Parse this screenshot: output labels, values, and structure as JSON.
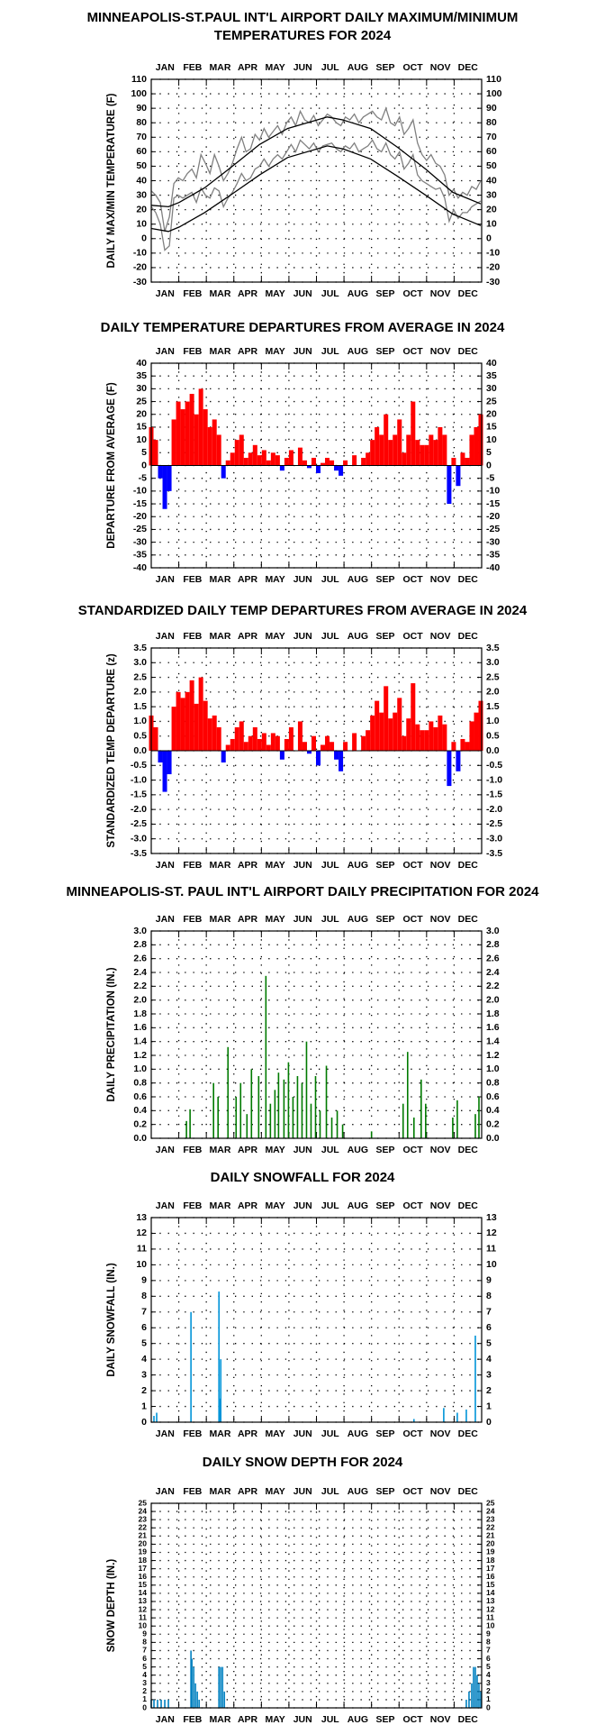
{
  "chart_data": [
    {
      "type": "line",
      "title": [
        "MINNEAPOLIS-ST.PAUL INT'L AIRPORT DAILY MAXIMUM/MINIMUM",
        "TEMPERATURES FOR 2024"
      ],
      "y_label": "DAILY MAX/MIN TEMPERATURE (F)",
      "categories": [
        "JAN",
        "FEB",
        "MAR",
        "APR",
        "MAY",
        "JUN",
        "JUL",
        "AUG",
        "SEP",
        "OCT",
        "NOV",
        "DEC"
      ],
      "xlim": [
        1,
        367
      ],
      "ylim": [
        -30,
        110
      ],
      "yticks": [
        -30,
        -20,
        -10,
        0,
        10,
        20,
        30,
        40,
        50,
        60,
        70,
        80,
        90,
        100,
        110
      ],
      "grid": true,
      "series": [
        {
          "color": "#808080",
          "x": [
            1,
            6,
            11,
            16,
            21,
            26,
            31,
            36,
            41,
            46,
            51,
            56,
            61,
            66,
            71,
            76,
            81,
            86,
            91,
            96,
            101,
            106,
            111,
            116,
            121,
            126,
            131,
            136,
            141,
            146,
            151,
            156,
            161,
            166,
            171,
            176,
            181,
            186,
            191,
            196,
            201,
            206,
            211,
            216,
            221,
            226,
            231,
            236,
            241,
            246,
            251,
            256,
            261,
            266,
            271,
            276,
            281,
            286,
            291,
            296,
            301,
            306,
            311,
            316,
            321,
            326,
            331,
            336,
            341,
            346,
            351,
            356,
            361,
            366
          ],
          "values": [
            33,
            30,
            25,
            5,
            15,
            38,
            42,
            40,
            45,
            48,
            42,
            58,
            52,
            45,
            58,
            50,
            40,
            45,
            52,
            62,
            70,
            60,
            62,
            72,
            68,
            76,
            70,
            74,
            78,
            72,
            80,
            84,
            78,
            88,
            82,
            80,
            85,
            78,
            82,
            86,
            84,
            80,
            78,
            84,
            82,
            86,
            80,
            84,
            86,
            88,
            84,
            82,
            90,
            80,
            78,
            84,
            72,
            76,
            82,
            66,
            58,
            54,
            58,
            52,
            50,
            44,
            30,
            34,
            28,
            32,
            30,
            36,
            34,
            40
          ]
        },
        {
          "color": "#808080",
          "x": [
            1,
            6,
            11,
            16,
            21,
            26,
            31,
            36,
            41,
            46,
            51,
            56,
            61,
            66,
            71,
            76,
            81,
            86,
            91,
            96,
            101,
            106,
            111,
            116,
            121,
            126,
            131,
            136,
            141,
            146,
            151,
            156,
            161,
            166,
            171,
            176,
            181,
            186,
            191,
            196,
            201,
            206,
            211,
            216,
            221,
            226,
            231,
            236,
            241,
            246,
            251,
            256,
            261,
            266,
            271,
            276,
            281,
            286,
            291,
            296,
            301,
            306,
            311,
            316,
            321,
            326,
            331,
            336,
            341,
            346,
            351,
            356,
            361,
            366
          ],
          "values": [
            22,
            18,
            10,
            -8,
            -5,
            28,
            30,
            28,
            30,
            32,
            25,
            35,
            30,
            28,
            35,
            33,
            22,
            28,
            32,
            38,
            45,
            40,
            42,
            48,
            50,
            55,
            50,
            55,
            58,
            55,
            60,
            65,
            60,
            68,
            65,
            62,
            66,
            60,
            64,
            65,
            66,
            62,
            60,
            64,
            62,
            66,
            60,
            62,
            64,
            68,
            62,
            60,
            66,
            58,
            55,
            60,
            48,
            52,
            58,
            44,
            40,
            38,
            36,
            34,
            35,
            28,
            12,
            20,
            14,
            18,
            18,
            22,
            24,
            26
          ]
        },
        {
          "color": "#000000",
          "x": [
            1,
            20,
            32,
            60,
            91,
            121,
            152,
            196,
            213,
            244,
            274,
            305,
            335,
            366
          ],
          "values": [
            23,
            22,
            25,
            35,
            50,
            65,
            76,
            84,
            82,
            76,
            63,
            48,
            32,
            24
          ]
        },
        {
          "color": "#000000",
          "x": [
            1,
            20,
            32,
            60,
            91,
            121,
            152,
            196,
            213,
            244,
            274,
            305,
            335,
            366
          ],
          "values": [
            7,
            5,
            8,
            18,
            31,
            44,
            56,
            64,
            62,
            55,
            43,
            30,
            17,
            9
          ]
        }
      ]
    },
    {
      "type": "bar",
      "title": "DAILY TEMPERATURE DEPARTURES FROM AVERAGE IN 2024",
      "y_label": "DEPARTURE FROM AVERAGE (F)",
      "categories": [
        "JAN",
        "FEB",
        "MAR",
        "APR",
        "MAY",
        "JUN",
        "JUL",
        "AUG",
        "SEP",
        "OCT",
        "NOV",
        "DEC"
      ],
      "xlim": [
        1,
        367
      ],
      "ylim": [
        -40,
        40
      ],
      "yticks": [
        -40,
        -35,
        -30,
        -25,
        -20,
        -15,
        -10,
        -5,
        0,
        5,
        10,
        15,
        20,
        25,
        30,
        35,
        40
      ],
      "grid": true,
      "positive_color": "#ff0000",
      "negative_color": "#0000ff",
      "x": [
        1,
        6,
        11,
        16,
        21,
        26,
        31,
        36,
        41,
        46,
        51,
        56,
        61,
        66,
        71,
        76,
        81,
        86,
        91,
        96,
        101,
        106,
        111,
        116,
        121,
        126,
        131,
        136,
        141,
        146,
        151,
        156,
        161,
        166,
        171,
        176,
        181,
        186,
        191,
        196,
        201,
        206,
        211,
        216,
        221,
        226,
        231,
        236,
        241,
        246,
        251,
        256,
        261,
        266,
        271,
        276,
        281,
        286,
        291,
        296,
        301,
        306,
        311,
        316,
        321,
        326,
        331,
        336,
        341,
        346,
        351,
        356,
        361,
        366
      ],
      "values": [
        15,
        10,
        -5,
        -17,
        -10,
        18,
        25,
        22,
        25,
        28,
        20,
        30,
        22,
        15,
        18,
        12,
        -5,
        2,
        5,
        10,
        12,
        3,
        5,
        8,
        4,
        6,
        2,
        5,
        4,
        -2,
        3,
        6,
        0,
        7,
        2,
        -1,
        3,
        -3,
        1,
        3,
        2,
        -2,
        -4,
        2,
        0,
        4,
        0,
        3,
        5,
        10,
        15,
        12,
        20,
        10,
        12,
        18,
        5,
        12,
        25,
        10,
        8,
        8,
        12,
        10,
        15,
        12,
        -15,
        3,
        -8,
        5,
        3,
        12,
        15,
        20
      ]
    },
    {
      "type": "bar",
      "title": "STANDARDIZED DAILY TEMP DEPARTURES FROM AVERAGE IN 2024",
      "y_label": "STANDARDIZED TEMP DEPARTURE (z)",
      "categories": [
        "JAN",
        "FEB",
        "MAR",
        "APR",
        "MAY",
        "JUN",
        "JUL",
        "AUG",
        "SEP",
        "OCT",
        "NOV",
        "DEC"
      ],
      "xlim": [
        1,
        367
      ],
      "ylim": [
        -3.5,
        3.5
      ],
      "yticks": [
        -3.5,
        {
          "value": -3,
          "label": "-3.0"
        },
        -2.5,
        {
          "value": -2,
          "label": "-2.0"
        },
        -1.5,
        {
          "value": -1,
          "label": "-1.0"
        },
        -0.5,
        {
          "value": 0,
          "label": "0.0"
        },
        0.5,
        {
          "value": 1,
          "label": "1.0"
        },
        1.5,
        {
          "value": 2,
          "label": "2.0"
        },
        2.5,
        {
          "value": 3,
          "label": "3.0"
        },
        3.5
      ],
      "grid": true,
      "positive_color": "#ff0000",
      "negative_color": "#0000ff",
      "x": [
        1,
        6,
        11,
        16,
        21,
        26,
        31,
        36,
        41,
        46,
        51,
        56,
        61,
        66,
        71,
        76,
        81,
        86,
        91,
        96,
        101,
        106,
        111,
        116,
        121,
        126,
        131,
        136,
        141,
        146,
        151,
        156,
        161,
        166,
        171,
        176,
        181,
        186,
        191,
        196,
        201,
        206,
        211,
        216,
        221,
        226,
        231,
        236,
        241,
        246,
        251,
        256,
        261,
        266,
        271,
        276,
        281,
        286,
        291,
        296,
        301,
        306,
        311,
        316,
        321,
        326,
        331,
        336,
        341,
        346,
        351,
        356,
        361,
        366
      ],
      "values": [
        1.2,
        0.8,
        -0.4,
        -1.4,
        -0.8,
        1.5,
        2.0,
        1.8,
        2.0,
        2.4,
        1.6,
        2.5,
        1.7,
        1.1,
        1.2,
        0.8,
        -0.4,
        0.2,
        0.4,
        0.8,
        1.0,
        0.3,
        0.5,
        0.8,
        0.4,
        0.6,
        0.2,
        0.6,
        0.5,
        -0.3,
        0.4,
        0.8,
        0.0,
        1.0,
        0.3,
        -0.1,
        0.5,
        -0.5,
        0.2,
        0.5,
        0.3,
        -0.3,
        -0.7,
        0.3,
        0.0,
        0.6,
        0.0,
        0.5,
        0.7,
        1.2,
        1.7,
        1.3,
        2.2,
        1.1,
        1.3,
        1.8,
        0.5,
        1.1,
        2.3,
        0.9,
        0.7,
        0.7,
        1.0,
        0.8,
        1.2,
        0.9,
        -1.2,
        0.3,
        -0.7,
        0.4,
        0.3,
        1.0,
        1.3,
        1.7
      ]
    },
    {
      "type": "bar",
      "title": "MINNEAPOLIS-ST. PAUL INT'L AIRPORT DAILY PRECIPITATION FOR 2024",
      "y_label": "DAILY PRECIPITATION (IN.)",
      "categories": [
        "JAN",
        "FEB",
        "MAR",
        "APR",
        "MAY",
        "JUN",
        "JUL",
        "AUG",
        "SEP",
        "OCT",
        "NOV",
        "DEC"
      ],
      "xlim": [
        1,
        367
      ],
      "ylim": [
        0,
        3
      ],
      "yticks": [
        {
          "value": 0,
          "label": "0.0"
        },
        0.2,
        0.4,
        0.6,
        0.8,
        {
          "value": 1,
          "label": "1.0"
        },
        1.2,
        1.4,
        1.6,
        1.8,
        {
          "value": 2,
          "label": "2.0"
        },
        2.2,
        2.4,
        2.6,
        2.8,
        {
          "value": 3,
          "label": "3.0"
        }
      ],
      "grid": true,
      "color": "#007a00",
      "x": [
        40,
        44,
        70,
        75,
        86,
        95,
        100,
        107,
        112,
        120,
        128,
        133,
        138,
        142,
        148,
        153,
        158,
        163,
        168,
        173,
        178,
        183,
        188,
        195,
        201,
        207,
        213,
        245,
        280,
        285,
        292,
        300,
        305,
        335,
        340,
        360,
        364
      ],
      "values": [
        0.25,
        0.42,
        0.8,
        0.6,
        1.32,
        0.6,
        0.8,
        0.35,
        1.0,
        0.9,
        2.35,
        0.5,
        0.7,
        0.95,
        0.85,
        1.1,
        0.6,
        0.9,
        0.8,
        1.4,
        0.5,
        0.9,
        0.4,
        1.05,
        0.3,
        0.4,
        0.2,
        0.1,
        0.5,
        1.25,
        0.3,
        0.85,
        0.5,
        0.3,
        0.55,
        0.35,
        0.6
      ]
    },
    {
      "type": "bar",
      "title": "DAILY SNOWFALL FOR 2024",
      "y_label": "DAILY SNOWFALL (IN.)",
      "categories": [
        "JAN",
        "FEB",
        "MAR",
        "APR",
        "MAY",
        "JUN",
        "JUL",
        "AUG",
        "SEP",
        "OCT",
        "NOV",
        "DEC"
      ],
      "xlim": [
        1,
        367
      ],
      "ylim": [
        0,
        13
      ],
      "yticks": [
        0,
        1,
        2,
        3,
        4,
        5,
        6,
        7,
        8,
        9,
        10,
        11,
        12,
        13
      ],
      "grid": true,
      "color": "#0094d8",
      "x": [
        4,
        7,
        45,
        76,
        77,
        78,
        292,
        325,
        340,
        350,
        360
      ],
      "values": [
        0.4,
        0.6,
        7.0,
        8.3,
        1.5,
        4.0,
        0.2,
        0.9,
        0.6,
        0.8,
        5.5
      ]
    },
    {
      "type": "bar",
      "title": "DAILY SNOW DEPTH FOR 2024",
      "y_label": "SNOW DEPTH (IN.)",
      "categories": [
        "JAN",
        "FEB",
        "MAR",
        "APR",
        "MAY",
        "JUN",
        "JUL",
        "AUG",
        "SEP",
        "OCT",
        "NOV",
        "DEC"
      ],
      "xlim": [
        1,
        367
      ],
      "ylim": [
        0,
        25
      ],
      "yticks": [
        0,
        1,
        2,
        3,
        4,
        5,
        6,
        7,
        8,
        9,
        10,
        11,
        12,
        13,
        14,
        15,
        16,
        17,
        18,
        19,
        20,
        21,
        22,
        23,
        24,
        25
      ],
      "grid": true,
      "color": "#0080c0",
      "x": [
        1,
        4,
        8,
        12,
        16,
        20,
        45,
        46,
        48,
        50,
        52,
        54,
        76,
        78,
        80,
        82,
        350,
        353,
        356,
        358,
        360,
        362,
        364,
        366
      ],
      "values": [
        1,
        1,
        1,
        1,
        1,
        1,
        7,
        6,
        5,
        3,
        2,
        1,
        5,
        5,
        5,
        2,
        1,
        2,
        3,
        5,
        5,
        4,
        3,
        2
      ]
    }
  ]
}
